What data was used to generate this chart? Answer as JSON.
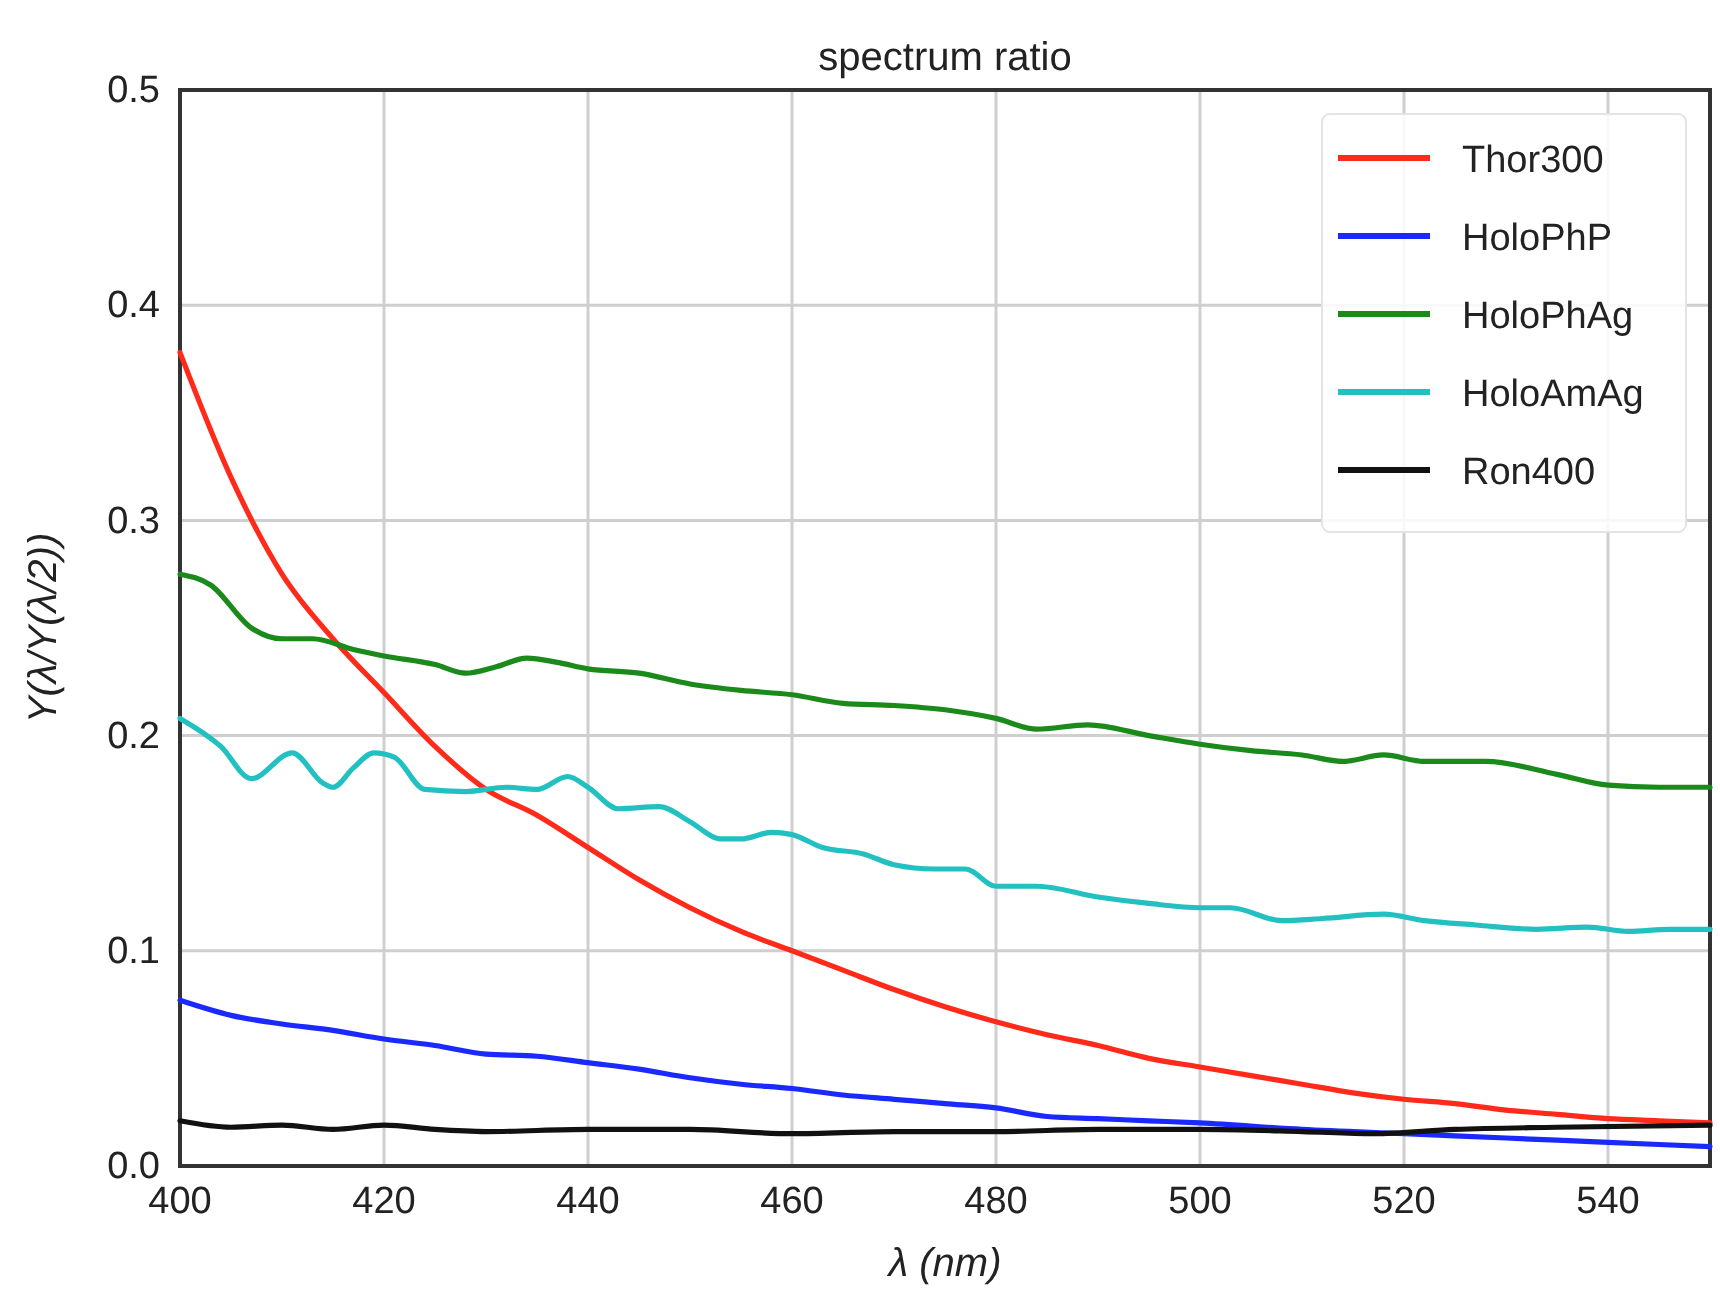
{
  "chart_data": {
    "type": "line",
    "title": "spectrum ratio",
    "xlabel": "λ (nm)",
    "ylabel": "Y(λ/Y(λ/2))",
    "xlim": [
      400,
      550
    ],
    "ylim": [
      0,
      0.5
    ],
    "xticks": [
      400,
      420,
      440,
      460,
      480,
      500,
      520,
      540
    ],
    "yticks": [
      {
        "value": 0,
        "label": "0.0"
      },
      0.1,
      0.2,
      0.3,
      0.4,
      0.5
    ],
    "grid": true,
    "legend": "top right",
    "line_style": "solid",
    "marker": "none",
    "series": [
      {
        "name": "Thor300",
        "color": "#ff2a1a",
        "x": [
          400,
          405,
          410,
          415,
          420,
          425,
          430,
          435,
          440,
          445,
          450,
          455,
          460,
          465,
          470,
          475,
          480,
          485,
          490,
          495,
          500,
          505,
          510,
          515,
          520,
          525,
          530,
          535,
          540,
          545,
          550
        ],
        "values": [
          0.378,
          0.32,
          0.275,
          0.245,
          0.22,
          0.195,
          0.175,
          0.163,
          0.148,
          0.133,
          0.12,
          0.109,
          0.1,
          0.091,
          0.082,
          0.074,
          0.067,
          0.061,
          0.056,
          0.05,
          0.046,
          0.042,
          0.038,
          0.034,
          0.031,
          0.029,
          0.026,
          0.024,
          0.022,
          0.021,
          0.02
        ]
      },
      {
        "name": "HoloPhP",
        "color": "#1a2aff",
        "x": [
          400,
          405,
          410,
          415,
          420,
          425,
          430,
          435,
          440,
          445,
          450,
          455,
          460,
          465,
          470,
          475,
          480,
          485,
          490,
          495,
          500,
          510,
          520,
          530,
          540,
          550
        ],
        "values": [
          0.077,
          0.07,
          0.066,
          0.063,
          0.059,
          0.056,
          0.052,
          0.051,
          0.048,
          0.045,
          0.041,
          0.038,
          0.036,
          0.033,
          0.031,
          0.029,
          0.027,
          0.023,
          0.022,
          0.021,
          0.02,
          0.017,
          0.015,
          0.013,
          0.011,
          0.009
        ]
      },
      {
        "name": "HoloPhAg",
        "color": "#1a8a1a",
        "x": [
          400,
          403,
          407,
          410,
          413,
          417,
          420,
          425,
          428,
          431,
          434,
          437,
          440,
          445,
          450,
          455,
          460,
          465,
          470,
          475,
          480,
          484,
          489,
          495,
          500,
          505,
          510,
          514,
          518,
          522,
          528,
          535,
          540,
          545,
          550
        ],
        "values": [
          0.275,
          0.27,
          0.25,
          0.245,
          0.245,
          0.24,
          0.237,
          0.233,
          0.229,
          0.232,
          0.236,
          0.234,
          0.231,
          0.229,
          0.224,
          0.221,
          0.219,
          0.215,
          0.214,
          0.212,
          0.208,
          0.203,
          0.205,
          0.2,
          0.196,
          0.193,
          0.191,
          0.188,
          0.191,
          0.188,
          0.188,
          0.182,
          0.177,
          0.176,
          0.176
        ]
      },
      {
        "name": "HoloAmAg",
        "color": "#22c0c0",
        "x": [
          400,
          404,
          407,
          411,
          414,
          415,
          417,
          419,
          421,
          424,
          428,
          432,
          435,
          438,
          440,
          443,
          447,
          450,
          453,
          455,
          458,
          460,
          463,
          467,
          470,
          474,
          477,
          480,
          484,
          490,
          495,
          500,
          503,
          508,
          512,
          518,
          522,
          527,
          533,
          538,
          542,
          546,
          550
        ],
        "values": [
          0.208,
          0.195,
          0.18,
          0.192,
          0.178,
          0.176,
          0.185,
          0.192,
          0.19,
          0.175,
          0.174,
          0.176,
          0.175,
          0.181,
          0.176,
          0.166,
          0.167,
          0.16,
          0.152,
          0.152,
          0.155,
          0.154,
          0.148,
          0.145,
          0.14,
          0.138,
          0.138,
          0.13,
          0.13,
          0.125,
          0.122,
          0.12,
          0.12,
          0.114,
          0.115,
          0.117,
          0.114,
          0.112,
          0.11,
          0.111,
          0.109,
          0.11,
          0.11
        ]
      },
      {
        "name": "Ron400",
        "color": "#111111",
        "x": [
          400,
          405,
          410,
          415,
          420,
          425,
          430,
          440,
          450,
          460,
          470,
          480,
          490,
          500,
          510,
          517,
          525,
          535,
          550
        ],
        "values": [
          0.021,
          0.018,
          0.019,
          0.017,
          0.019,
          0.017,
          0.016,
          0.017,
          0.017,
          0.015,
          0.016,
          0.016,
          0.017,
          0.017,
          0.016,
          0.015,
          0.017,
          0.018,
          0.019
        ]
      }
    ]
  }
}
